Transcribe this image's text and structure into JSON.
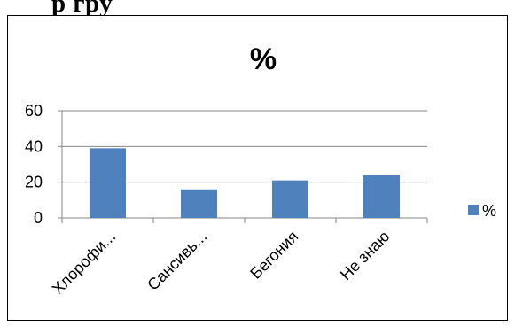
{
  "document": {
    "heading_fragment": "р          гру"
  },
  "chart_data": {
    "type": "bar",
    "title": "%",
    "categories": [
      "Хлорофи...",
      "Сансивь...",
      "Бегония",
      "Не знаю"
    ],
    "series": [
      {
        "name": "%",
        "values": [
          39,
          16,
          21,
          24
        ],
        "color": "#4f81bd"
      }
    ],
    "ylim": [
      0,
      60
    ],
    "yticks": [
      0,
      20,
      40,
      60
    ],
    "xlabel": "",
    "ylabel": "",
    "grid": true,
    "legend": "right"
  }
}
